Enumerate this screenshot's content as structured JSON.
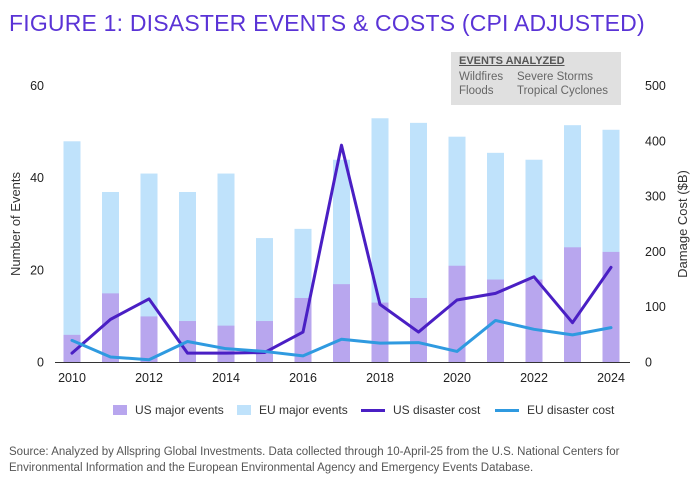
{
  "title": "FIGURE 1: DISASTER EVENTS & COSTS (CPI ADJUSTED)",
  "events_analyzed": {
    "heading": "EVENTS ANALYZED",
    "items": [
      "Wildfires",
      "Severe Storms",
      "Floods",
      "Tropical Cyclones"
    ]
  },
  "source": "Source: Analyzed by Allspring Global Investments. Data collected through 10-April-25 from the U.S. National Centers for Environmental Information and the European Environmental Agency and Emergency Events Database.",
  "colors": {
    "title": "#5a33d6",
    "us_events": "#b8a6ee",
    "eu_events": "#bfe2fb",
    "us_cost": "#4a1fc4",
    "eu_cost": "#2f9ae0"
  },
  "chart_data": {
    "type": "bar+line",
    "years": [
      2010,
      2011,
      2012,
      2013,
      2014,
      2015,
      2016,
      2017,
      2018,
      2019,
      2020,
      2021,
      2022,
      2023,
      2024
    ],
    "x_tick_labels": [
      "2010",
      "2012",
      "2014",
      "2016",
      "2018",
      "2020",
      "2022",
      "2024"
    ],
    "y_left": {
      "label": "Number of Events",
      "range": [
        0,
        60
      ],
      "ticks": [
        "0",
        "20",
        "40",
        "60"
      ]
    },
    "y_right": {
      "label": "Damage Cost ($B)",
      "range": [
        0,
        500
      ],
      "ticks": [
        "0",
        "100",
        "200",
        "300",
        "400",
        "500"
      ]
    },
    "series": [
      {
        "name": "US major events",
        "type": "bar",
        "axis": "left",
        "values": [
          6,
          15,
          10,
          9,
          8,
          9,
          14,
          17,
          13,
          14,
          21,
          18,
          18,
          25,
          24
        ]
      },
      {
        "name": "EU major events",
        "type": "bar",
        "axis": "left",
        "values": [
          48,
          37,
          41,
          37,
          41,
          27,
          29,
          44,
          53,
          52,
          49,
          45.5,
          44,
          51.5,
          50.5
        ]
      },
      {
        "name": "US disaster cost",
        "type": "line",
        "axis": "right",
        "values": [
          17,
          78,
          115,
          17,
          17,
          18,
          55,
          393,
          105,
          55,
          113,
          125,
          155,
          72,
          172
        ]
      },
      {
        "name": "EU disaster cost",
        "type": "line",
        "axis": "right",
        "values": [
          40,
          10,
          5,
          38,
          25,
          20,
          12,
          42,
          35,
          36,
          20,
          76,
          60,
          50,
          63
        ]
      }
    ]
  }
}
